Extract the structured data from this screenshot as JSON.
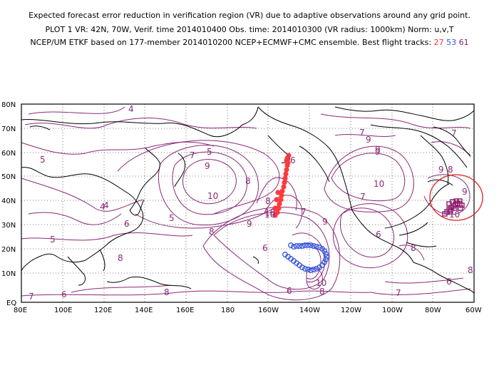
{
  "header": {
    "line1": "Expected forecast error reduction in verification region (VR) due to adaptive observations around any grid point.",
    "line2": "PLOT 1 VR: 42N, 70W, Verif. time 2014010400 Obs. time: 2014010300 (VR radius: 1000km) Norm: u,v,T",
    "line3_prefix": "NCEP/UM ETKF based on 177-member 2014010200 NCEP+ECMWF+CMC ensemble. Best flight tracks:",
    "tracks": [
      {
        "label": "27",
        "color": "#ff3333"
      },
      {
        "label": "53",
        "color": "#3355dd"
      },
      {
        "label": "61",
        "color": "#8b1a6b"
      }
    ]
  },
  "map": {
    "lon_labels": [
      "80E",
      "100E",
      "120E",
      "140E",
      "160E",
      "180",
      "160W",
      "140W",
      "120W",
      "100W",
      "80W",
      "60W"
    ],
    "lat_labels": [
      "80N",
      "70N",
      "60N",
      "50N",
      "40N",
      "30N",
      "20N",
      "10N",
      "EQ"
    ],
    "colors": {
      "contour": "#8a2a78",
      "coast": "#000000",
      "grid": "#555555",
      "vr_circle": "#dd2222"
    },
    "contour_labels": [
      "4",
      "5",
      "5",
      "5",
      "4",
      "5",
      "6",
      "6",
      "6",
      "7",
      "7",
      "8",
      "8",
      "9",
      "10",
      "10",
      "9",
      "8",
      "8",
      "7",
      "8",
      "9",
      "10",
      "6",
      "8",
      "9",
      "10",
      "9",
      "8",
      "7",
      "6",
      "8",
      "7",
      "6",
      "4",
      "6",
      "10",
      "9",
      "10",
      "7",
      "7",
      "8",
      "9",
      "9"
    ]
  }
}
